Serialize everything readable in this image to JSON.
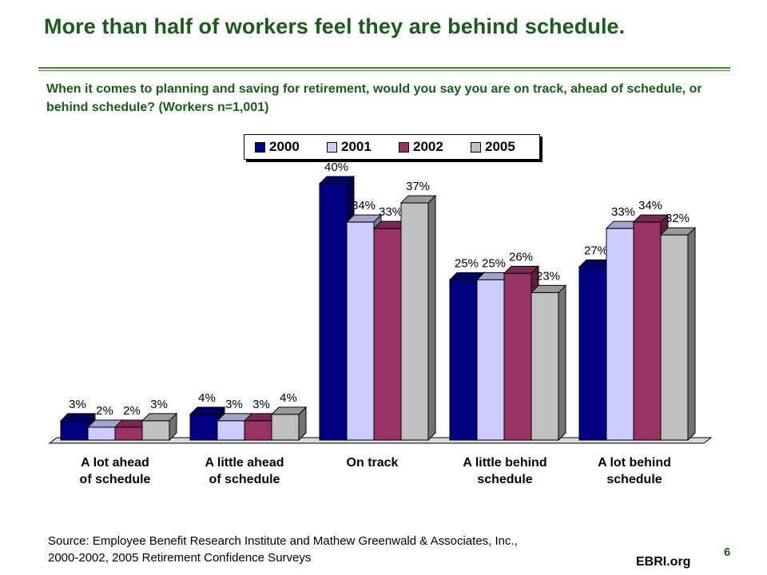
{
  "title": "More than half of workers feel they are behind schedule.",
  "question": "When it comes to planning and saving for retirement, would you say you are on track, ahead of schedule, or behind schedule? (Workers n=1,001)",
  "source": {
    "line1": "Source: Employee Benefit Research Institute and Mathew Greenwald & Associates, Inc.,",
    "line2": "2000-2002, 2005 Retirement Confidence Surveys"
  },
  "footer": {
    "page_number": "6",
    "brand": "EBRI.org"
  },
  "colors": {
    "2000": "#000080",
    "2001": "#ccccff",
    "2002": "#993366",
    "2005": "#c0c0c0",
    "title": "#1a5c1a"
  },
  "chart_data": {
    "type": "bar",
    "categories": [
      [
        "A lot ahead",
        "of schedule"
      ],
      [
        "A little ahead",
        "of schedule"
      ],
      [
        "On track"
      ],
      [
        "A little behind",
        "schedule"
      ],
      [
        "A lot behind",
        "schedule"
      ]
    ],
    "series": [
      {
        "name": "2000",
        "values": [
          3,
          4,
          40,
          25,
          27
        ],
        "labels": [
          "3%",
          "4%",
          "40%",
          "25%",
          "27%"
        ]
      },
      {
        "name": "2001",
        "values": [
          2,
          3,
          34,
          25,
          33
        ],
        "labels": [
          "2%",
          "3%",
          "34%",
          "25%",
          "33%"
        ]
      },
      {
        "name": "2002",
        "values": [
          2,
          3,
          33,
          26,
          34
        ],
        "labels": [
          "2%",
          "3%",
          "33%",
          "26%",
          "34%"
        ]
      },
      {
        "name": "2005",
        "values": [
          3,
          4,
          37,
          23,
          32
        ],
        "labels": [
          "3%",
          "4%",
          "37%",
          "23%",
          "32%"
        ]
      }
    ],
    "ylim": [
      0,
      42
    ],
    "legend": "top",
    "grid": false,
    "style": "3d-clustered-column"
  }
}
